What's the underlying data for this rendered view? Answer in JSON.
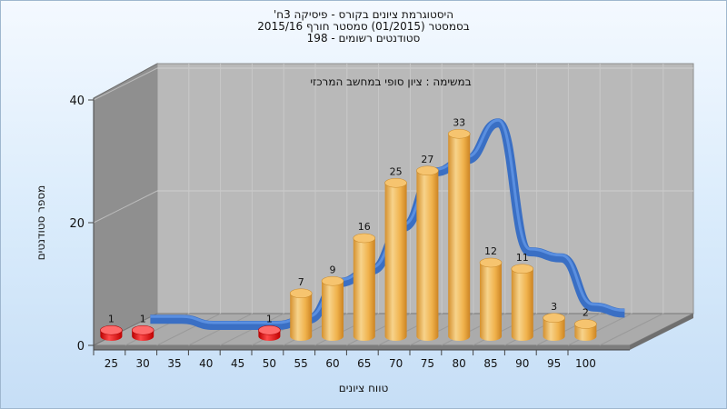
{
  "chart_data": {
    "type": "bar",
    "title_lines": [
      "היסטוגרמת ציונים בקורס - פיסיקה 3ח'",
      "בסמסטר  (01/2015)  סמסטר חורף 2015/16",
      "סטודנטים רשומים - 198"
    ],
    "annotation": "במשימה : ציון סופי במחשב המרכזי",
    "xlabel": "טווח ציונים",
    "ylabel": "מספר סטודנטים",
    "categories": [
      "25",
      "30",
      "35",
      "40",
      "45",
      "50",
      "55",
      "60",
      "65",
      "70",
      "75",
      "80",
      "85",
      "90",
      "95",
      "100"
    ],
    "values": [
      1,
      1,
      null,
      null,
      null,
      1,
      7,
      9,
      16,
      25,
      27,
      33,
      12,
      11,
      3,
      2
    ],
    "ylim": [
      0,
      40
    ],
    "yticks": [
      "0",
      "20",
      "40"
    ],
    "grid": true,
    "colors": {
      "low_bars": "#e01010",
      "bars": "#f2b24f",
      "trend": "#2f6ec8",
      "back_wall": "#b7b7b7",
      "side_wall": "#8d8d8d",
      "floor": "#a9a9a9"
    }
  }
}
